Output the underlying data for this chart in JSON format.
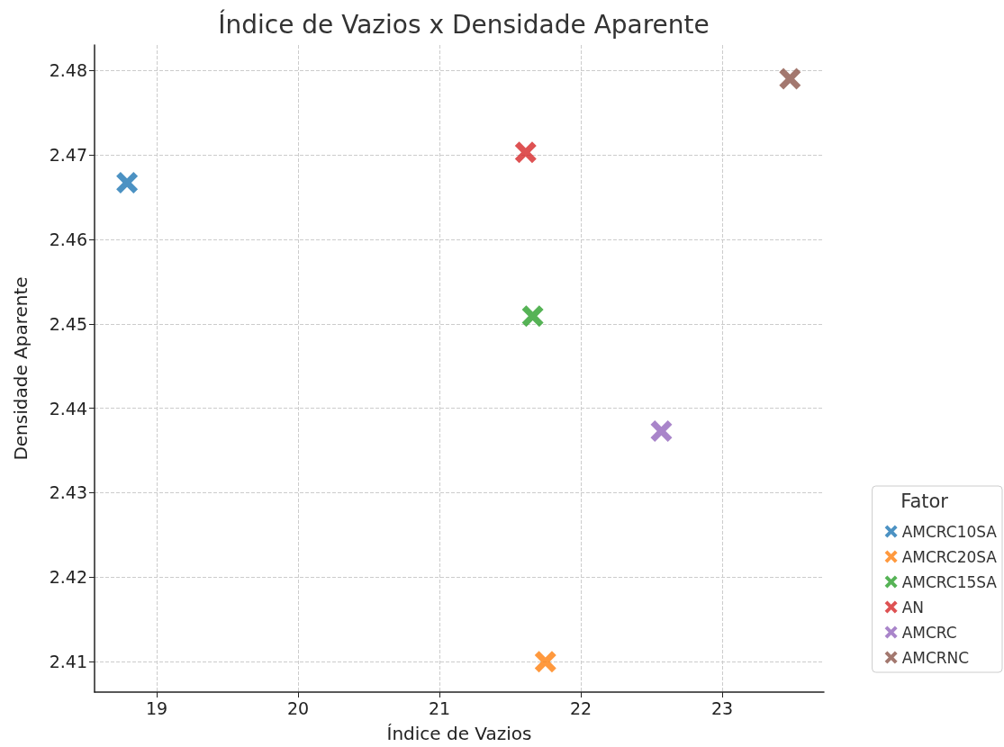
{
  "chart_data": {
    "type": "scatter",
    "title": "Índice de Vazios x Densidade Aparente",
    "xlabel": "Índice de Vazios",
    "ylabel": "Densidade Aparente",
    "legend_title": "Fator",
    "legend": "right",
    "grid": true,
    "marker": "cross",
    "xlim": [
      18.56,
      23.72
    ],
    "xticks": [
      19,
      20,
      21,
      22,
      23
    ],
    "ylim": [
      2.4064,
      2.483
    ],
    "yticks": [
      2.41,
      2.42,
      2.43,
      2.44,
      2.45,
      2.46,
      2.47,
      2.48
    ],
    "series": [
      {
        "name": "AMCRC10SA",
        "color": "#1f77b4",
        "x": [
          18.79
        ],
        "values": [
          2.4667
        ]
      },
      {
        "name": "AMCRC20SA",
        "color": "#ff7f0e",
        "x": [
          21.75
        ],
        "values": [
          2.41
        ]
      },
      {
        "name": "AMCRC15SA",
        "color": "#2ca02c",
        "x": [
          21.66
        ],
        "values": [
          2.4509
        ]
      },
      {
        "name": "AN",
        "color": "#d62728",
        "x": [
          21.61
        ],
        "values": [
          2.4703
        ]
      },
      {
        "name": "AMCRC",
        "color": "#9467bd",
        "x": [
          22.57
        ],
        "values": [
          2.4373
        ]
      },
      {
        "name": "AMCRNC",
        "color": "#8c564b",
        "x": [
          23.48
        ],
        "values": [
          2.479
        ]
      }
    ]
  }
}
